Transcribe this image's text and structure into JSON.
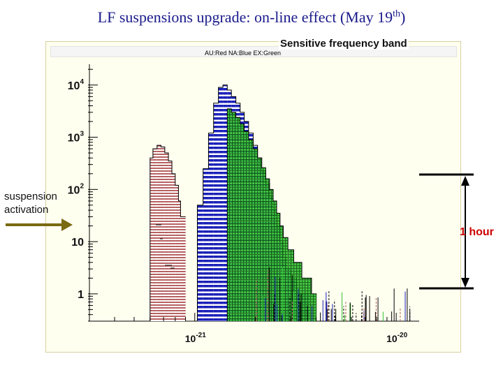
{
  "slide": {
    "title_main": "LF suspensions upgrade: on-line effect (May 19",
    "title_sup": "th",
    "title_close": ")"
  },
  "annotations": {
    "band": "Sensitive frequency band",
    "suspension_line1": "suspension",
    "suspension_line2": "activation",
    "hour": "1 hour"
  },
  "colors": {
    "red": "#b56060",
    "blue": "#1a20b8",
    "green": "#34c234",
    "arrow": "#7a6a10",
    "title": "#1a1a8c"
  },
  "chart_data": {
    "type": "bar",
    "title": "",
    "legend": "AU:Red   NA:Blue   EX:Green",
    "xlabel": "",
    "ylabel": "",
    "x_scale": "log",
    "y_scale": "log",
    "xlim": [
      3e-22,
      1.3e-20
    ],
    "ylim": [
      0.3,
      25000
    ],
    "y_ticks": [
      {
        "base": "10",
        "exp": "4"
      },
      {
        "base": "10",
        "exp": "3"
      },
      {
        "base": "10",
        "exp": "2"
      },
      {
        "base": "10",
        "exp": ""
      },
      {
        "base": "1",
        "exp": ""
      }
    ],
    "x_ticks": [
      {
        "base": "10",
        "exp": "-21"
      },
      {
        "base": "10",
        "exp": "-20"
      }
    ],
    "series": [
      {
        "name": "AU",
        "x": [
          6e-22,
          6.2e-22,
          6.5e-22,
          6.8e-22,
          7.1e-22,
          7.4e-22,
          7.7e-22,
          8e-22,
          8.3e-22,
          8.5e-22
        ],
        "values": [
          400,
          600,
          700,
          650,
          500,
          350,
          200,
          120,
          60,
          30
        ]
      },
      {
        "name": "NA",
        "x": [
          1.03e-21,
          1.1e-21,
          1.17e-21,
          1.24e-21,
          1.31e-21,
          1.38e-21,
          1.45e-21,
          1.52e-21,
          1.6e-21,
          1.68e-21,
          1.76e-21,
          1.85e-21,
          1.95e-21,
          2.05e-21,
          2.15e-21,
          2.25e-21,
          2.35e-21,
          2.45e-21,
          2.55e-21,
          2.65e-21,
          2.75e-21,
          2.85e-21,
          3e-21,
          3.2e-21,
          3.5e-21
        ],
        "values": [
          50,
          250,
          1200,
          4500,
          9000,
          10000,
          8000,
          6000,
          4500,
          3000,
          2000,
          1200,
          700,
          400,
          220,
          130,
          70,
          40,
          20,
          10,
          5,
          3,
          2,
          1,
          1
        ]
      },
      {
        "name": "EX",
        "x": [
          1.45e-21,
          1.52e-21,
          1.6e-21,
          1.68e-21,
          1.76e-21,
          1.85e-21,
          1.95e-21,
          2.05e-21,
          2.15e-21,
          2.25e-21,
          2.35e-21,
          2.45e-21,
          2.55e-21,
          2.65e-21,
          2.75e-21,
          2.9e-21,
          3.1e-21,
          3.4e-21,
          3.8e-21
        ],
        "values": [
          3500,
          3000,
          2400,
          1800,
          1300,
          900,
          600,
          400,
          260,
          160,
          100,
          60,
          35,
          20,
          12,
          7,
          4,
          2,
          1
        ]
      }
    ]
  }
}
